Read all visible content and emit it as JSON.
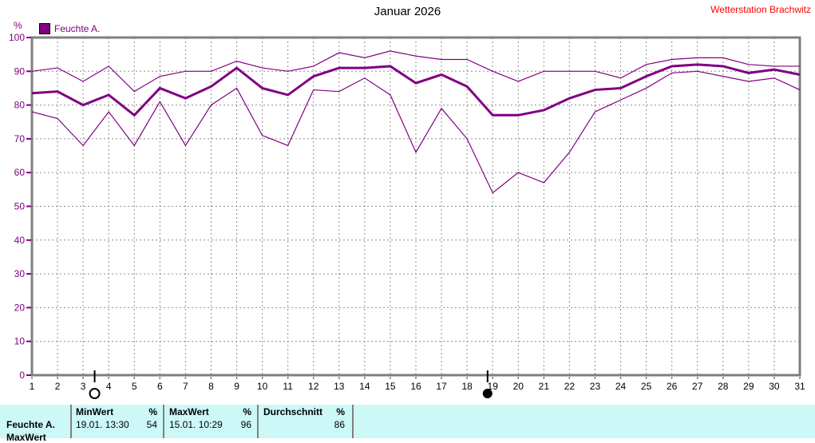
{
  "header": {
    "title": "Januar 2026",
    "station": "Wetterstation Brachwitz"
  },
  "legend": {
    "label": "Feuchte A.",
    "swatch_color": "#800080"
  },
  "chart_data": {
    "type": "line",
    "title": "Januar 2026",
    "ylabel": "%",
    "xlabel": "",
    "ylim": [
      0,
      100
    ],
    "yticks": [
      0,
      10,
      20,
      30,
      40,
      50,
      60,
      70,
      80,
      90,
      100
    ],
    "grid": true,
    "legend_position": "top-left",
    "line_color": "#800080",
    "x": [
      1,
      2,
      3,
      4,
      5,
      6,
      7,
      8,
      9,
      10,
      11,
      12,
      13,
      14,
      15,
      16,
      17,
      18,
      19,
      20,
      21,
      22,
      23,
      24,
      25,
      26,
      27,
      28,
      29,
      30,
      31
    ],
    "series": [
      {
        "name": "Feuchte A. Maximum",
        "style": "thin",
        "values": [
          90,
          91,
          87,
          91.5,
          84,
          88.5,
          90,
          90,
          93,
          91,
          90,
          91.5,
          95.5,
          94,
          96,
          94.5,
          93.5,
          93.5,
          90,
          87,
          90,
          90,
          90,
          88,
          92,
          93.5,
          94,
          94,
          92,
          91.5,
          91.5
        ]
      },
      {
        "name": "Feuchte A. Minimum",
        "style": "thin",
        "values": [
          78,
          76,
          68,
          78,
          68,
          81,
          68,
          80,
          85,
          71,
          68,
          84.5,
          84,
          88,
          83,
          66,
          79,
          70,
          54,
          60,
          57,
          66,
          78,
          81.5,
          85,
          89.5,
          90,
          88.5,
          87,
          88,
          84.5
        ]
      },
      {
        "name": "Feuchte A. Durchschnitt",
        "style": "thick",
        "values": [
          83.5,
          84,
          80,
          83,
          77,
          85,
          82,
          85.5,
          91,
          85,
          83,
          88.5,
          91,
          91,
          91.5,
          86.5,
          89,
          85.5,
          77,
          77,
          78.5,
          82,
          84.5,
          85,
          88.5,
          91.5,
          92,
          91.5,
          89.5,
          90.5,
          89
        ]
      }
    ],
    "moon_markers": [
      {
        "symbol": "full-moon",
        "day": 3.45
      },
      {
        "symbol": "new-moon",
        "day": 18.8
      }
    ]
  },
  "table": {
    "row_label": "Feuchte A.",
    "next_row_label": "MaxWert",
    "columns": [
      {
        "header": "MinWert",
        "unit": "%",
        "datetime": "19.01.  13:30",
        "value": "54"
      },
      {
        "header": "MaxWert",
        "unit": "%",
        "datetime": "15.01.  10:29",
        "value": "96"
      },
      {
        "header": "Durchschnitt",
        "unit": "%",
        "datetime": "",
        "value": "86"
      }
    ]
  },
  "colors": {
    "accent": "#800080",
    "station_text": "#ff0000",
    "axis": "#7f7f7f",
    "grid": "#8e8e8e",
    "table_bg": "#ccf8f8"
  }
}
